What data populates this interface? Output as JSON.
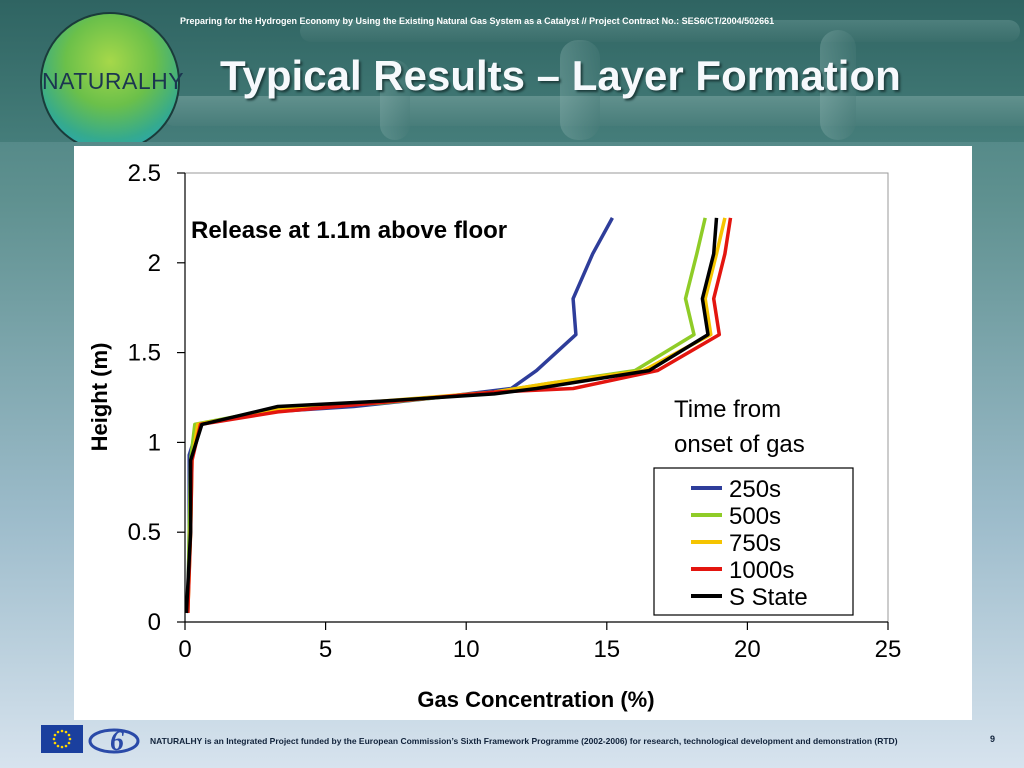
{
  "header": {
    "project_line": "Preparing for the Hydrogen Economy by Using the Existing Natural Gas System as a Catalyst // Project Contract No.: SES6/CT/2004/502661",
    "title": "Typical Results – Layer Formation",
    "logo_text": "NATURALHY"
  },
  "footer": {
    "text": "NATURALHY is an Integrated Project funded by the European Commission’s Sixth Framework Programme (2002-2006) for research, technological development and demonstration (RTD)",
    "page_number": "9"
  },
  "colors": {
    "accent": "#2e5f5e",
    "series_250s": "#2e3d9a",
    "series_500s": "#8fcc27",
    "series_750s": "#f5c400",
    "series_1000s": "#e3150f",
    "series_sstate": "#000000"
  },
  "chart_data": {
    "type": "line",
    "title": "",
    "annotation": "Release at 1.1m above floor",
    "xlabel": "Gas Concentration (%)",
    "ylabel": "Height (m)",
    "xlim": [
      0,
      25
    ],
    "ylim": [
      0,
      2.5
    ],
    "xticks": [
      "0",
      "5",
      "10",
      "15",
      "20",
      "25"
    ],
    "yticks": [
      "0",
      "0.5",
      "1",
      "1.5",
      "2",
      "2.5"
    ],
    "legend_title": [
      "Time from",
      "onset of gas"
    ],
    "legend_position": "bottom-right",
    "grid": false,
    "series": [
      {
        "name": "250s",
        "color": "#2e3d9a",
        "points": [
          [
            0.1,
            0.05
          ],
          [
            0.15,
            0.5
          ],
          [
            0.15,
            0.93
          ],
          [
            0.5,
            1.1
          ],
          [
            3,
            1.17
          ],
          [
            6,
            1.2
          ],
          [
            9,
            1.25
          ],
          [
            11.6,
            1.3
          ],
          [
            12.5,
            1.4
          ],
          [
            13.9,
            1.6
          ],
          [
            13.8,
            1.8
          ],
          [
            14.5,
            2.05
          ],
          [
            15.2,
            2.25
          ]
        ]
      },
      {
        "name": "500s",
        "color": "#8fcc27",
        "points": [
          [
            0.1,
            0.05
          ],
          [
            0.15,
            0.5
          ],
          [
            0.2,
            0.9
          ],
          [
            0.35,
            1.1
          ],
          [
            3,
            1.18
          ],
          [
            7,
            1.22
          ],
          [
            11,
            1.28
          ],
          [
            13,
            1.33
          ],
          [
            16,
            1.4
          ],
          [
            18.1,
            1.6
          ],
          [
            17.8,
            1.8
          ],
          [
            18.2,
            2.05
          ],
          [
            18.5,
            2.25
          ]
        ]
      },
      {
        "name": "750s",
        "color": "#f5c400",
        "points": [
          [
            0.1,
            0.05
          ],
          [
            0.2,
            0.5
          ],
          [
            0.25,
            0.9
          ],
          [
            0.45,
            1.1
          ],
          [
            3.2,
            1.18
          ],
          [
            7,
            1.23
          ],
          [
            11,
            1.28
          ],
          [
            13,
            1.33
          ],
          [
            16.3,
            1.4
          ],
          [
            18.7,
            1.6
          ],
          [
            18.5,
            1.8
          ],
          [
            18.9,
            2.05
          ],
          [
            19.2,
            2.25
          ]
        ]
      },
      {
        "name": "1000s",
        "color": "#e3150f",
        "points": [
          [
            0.1,
            0.05
          ],
          [
            0.2,
            0.5
          ],
          [
            0.25,
            0.9
          ],
          [
            0.55,
            1.1
          ],
          [
            3.3,
            1.17
          ],
          [
            7.5,
            1.23
          ],
          [
            11,
            1.28
          ],
          [
            13.8,
            1.3
          ],
          [
            16.8,
            1.4
          ],
          [
            19.0,
            1.6
          ],
          [
            18.8,
            1.8
          ],
          [
            19.2,
            2.05
          ],
          [
            19.4,
            2.25
          ]
        ]
      },
      {
        "name": "S State",
        "color": "#000000",
        "points": [
          [
            0.05,
            0.05
          ],
          [
            0.2,
            0.5
          ],
          [
            0.2,
            0.9
          ],
          [
            0.6,
            1.1
          ],
          [
            3.3,
            1.2
          ],
          [
            7,
            1.23
          ],
          [
            11,
            1.27
          ],
          [
            12.5,
            1.3
          ],
          [
            16.5,
            1.4
          ],
          [
            18.6,
            1.6
          ],
          [
            18.4,
            1.8
          ],
          [
            18.8,
            2.05
          ],
          [
            18.9,
            2.25
          ]
        ]
      }
    ]
  }
}
